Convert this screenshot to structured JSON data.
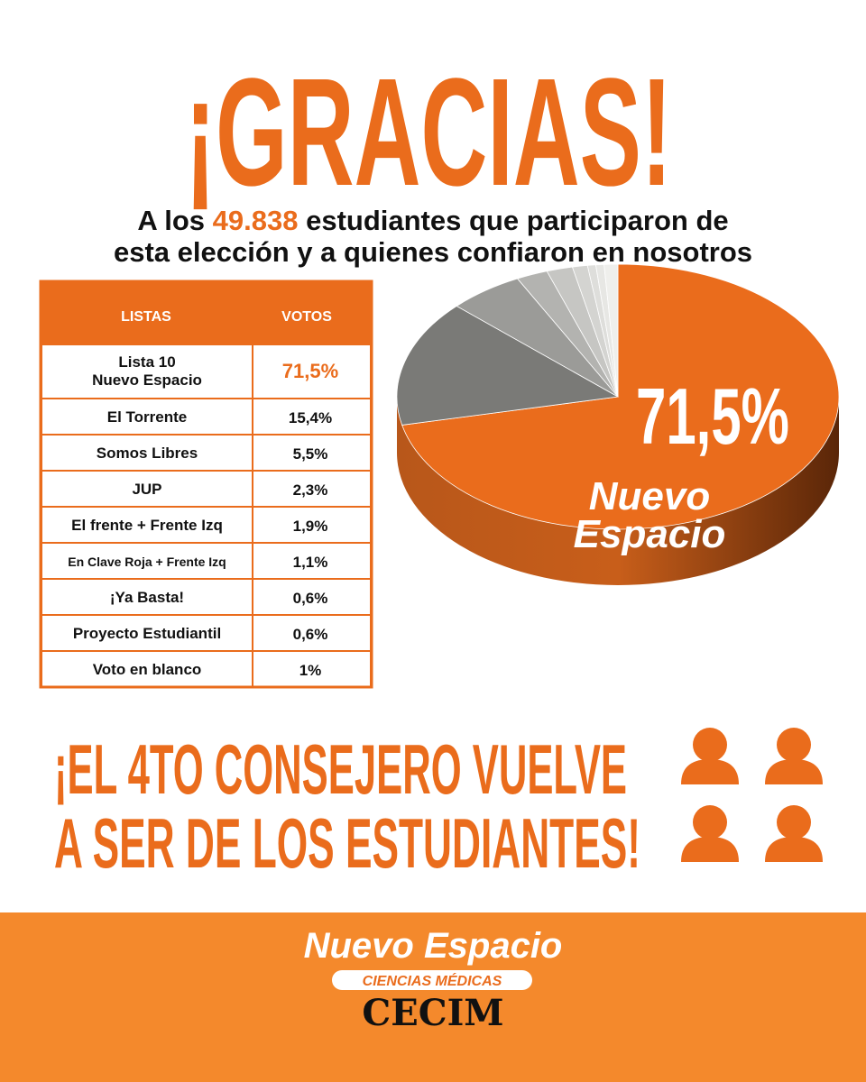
{
  "header": {
    "title": "¡GRACIAS!",
    "subtitle": [
      [
        "A los ",
        "49.838",
        " estudiantes que participaron de"
      ],
      [
        "esta elección y a quienes confiaron en nosotros"
      ]
    ]
  },
  "table": {
    "columns": [
      "LISTAS",
      "VOTOS"
    ],
    "rows": [
      {
        "name": [
          "Lista 10",
          "Nuevo Espacio"
        ],
        "votes": "71,5%"
      },
      {
        "name": "El Torrente",
        "votes": "15,4%"
      },
      {
        "name": "Somos Libres",
        "votes": "5,5%"
      },
      {
        "name": "JUP",
        "votes": "2,3%"
      },
      {
        "name": "El frente + Frente Izq",
        "votes": "1,9%"
      },
      {
        "name": "En Clave Roja + Frente Izq",
        "votes": "1,1%"
      },
      {
        "name": "¡Ya Basta!",
        "votes": "0,6%"
      },
      {
        "name": "Proyecto Estudiantil",
        "votes": "0,6%"
      },
      {
        "name": "Voto en blanco",
        "votes": "1%"
      }
    ]
  },
  "chart_data": {
    "type": "pie",
    "values": [
      71.5,
      15.4,
      5.5,
      2.3,
      1.9,
      1.1,
      0.6,
      0.6,
      1
    ],
    "colors": [
      "#ea6c1c",
      "#7a7a77",
      "#9b9b98",
      "#b3b3b0",
      "#c6c6c3",
      "#d4d4d1",
      "#dededb",
      "#e7e7e4",
      "#efefec"
    ],
    "label": "71,5%",
    "label_name": [
      "Nuevo",
      "Espacio"
    ]
  },
  "headline": [
    "¡EL 4TO CONSEJERO VUELVE",
    "A SER DE LOS ESTUDIANTES!"
  ],
  "footer": {
    "brand": "Nuevo Espacio",
    "tagline": "CIENCIAS MÉDICAS",
    "org": "CECIM"
  }
}
